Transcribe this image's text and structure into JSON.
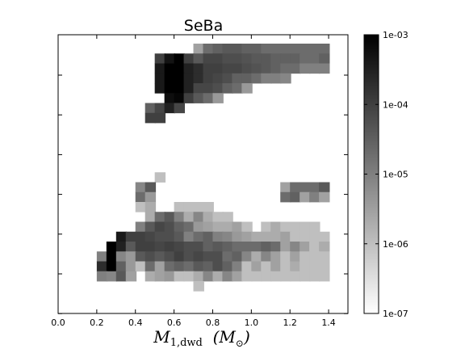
{
  "chart_data": {
    "type": "heatmap",
    "title": "SeBa",
    "xlabel_main": "M",
    "xlabel_sub": "1,dwd",
    "xlabel_unit_main": "M",
    "xlabel_unit_sub": "⊙",
    "xlim": [
      0.0,
      1.5
    ],
    "x_ticks": [
      "0.0",
      "0.2",
      "0.4",
      "0.6",
      "0.8",
      "1.0",
      "1.2",
      "1.4"
    ],
    "y_tick_count": 7,
    "color_scale": "log",
    "colorbar_range": [
      1e-07,
      0.001
    ],
    "colorbar_ticks": [
      "1e-03",
      "1e-04",
      "1e-05",
      "1e-06",
      "1e-07"
    ],
    "colormap": "gray_r",
    "grid": false,
    "cells": [
      {
        "x": 0.7,
        "row": 0,
        "v": 3e-06
      },
      {
        "x": 0.75,
        "row": 0,
        "v": 2e-05
      },
      {
        "x": 0.8,
        "row": 0,
        "v": 3e-05
      },
      {
        "x": 0.85,
        "row": 0,
        "v": 4e-05
      },
      {
        "x": 0.9,
        "row": 0,
        "v": 4e-05
      },
      {
        "x": 0.95,
        "row": 0,
        "v": 3e-05
      },
      {
        "x": 1.0,
        "row": 0,
        "v": 3e-05
      },
      {
        "x": 1.05,
        "row": 0,
        "v": 2e-05
      },
      {
        "x": 1.1,
        "row": 0,
        "v": 2e-05
      },
      {
        "x": 1.15,
        "row": 0,
        "v": 2e-05
      },
      {
        "x": 1.2,
        "row": 0,
        "v": 2e-05
      },
      {
        "x": 1.25,
        "row": 0,
        "v": 2e-05
      },
      {
        "x": 1.3,
        "row": 0,
        "v": 2e-05
      },
      {
        "x": 1.35,
        "row": 0,
        "v": 2e-05
      },
      {
        "x": 0.5,
        "row": 1,
        "v": 0.0001
      },
      {
        "x": 0.55,
        "row": 1,
        "v": 0.0005
      },
      {
        "x": 0.6,
        "row": 1,
        "v": 0.001
      },
      {
        "x": 0.65,
        "row": 1,
        "v": 0.0001
      },
      {
        "x": 0.7,
        "row": 1,
        "v": 4e-05
      },
      {
        "x": 0.75,
        "row": 1,
        "v": 8e-05
      },
      {
        "x": 0.8,
        "row": 1,
        "v": 8e-05
      },
      {
        "x": 0.85,
        "row": 1,
        "v": 6e-05
      },
      {
        "x": 0.9,
        "row": 1,
        "v": 6e-05
      },
      {
        "x": 0.95,
        "row": 1,
        "v": 5e-05
      },
      {
        "x": 1.0,
        "row": 1,
        "v": 4e-05
      },
      {
        "x": 1.05,
        "row": 1,
        "v": 4e-05
      },
      {
        "x": 1.1,
        "row": 1,
        "v": 3e-05
      },
      {
        "x": 1.15,
        "row": 1,
        "v": 3e-05
      },
      {
        "x": 1.2,
        "row": 1,
        "v": 3e-05
      },
      {
        "x": 1.25,
        "row": 1,
        "v": 2e-05
      },
      {
        "x": 1.3,
        "row": 1,
        "v": 2e-05
      },
      {
        "x": 1.35,
        "row": 1,
        "v": 3e-05
      },
      {
        "x": 0.5,
        "row": 2,
        "v": 0.0004
      },
      {
        "x": 0.55,
        "row": 2,
        "v": 0.001
      },
      {
        "x": 0.6,
        "row": 2,
        "v": 0.001
      },
      {
        "x": 0.65,
        "row": 2,
        "v": 0.0003
      },
      {
        "x": 0.7,
        "row": 2,
        "v": 0.0002
      },
      {
        "x": 0.75,
        "row": 2,
        "v": 0.0001
      },
      {
        "x": 0.8,
        "row": 2,
        "v": 0.0001
      },
      {
        "x": 0.85,
        "row": 2,
        "v": 8e-05
      },
      {
        "x": 0.9,
        "row": 2,
        "v": 8e-05
      },
      {
        "x": 0.95,
        "row": 2,
        "v": 6e-05
      },
      {
        "x": 1.0,
        "row": 2,
        "v": 5e-05
      },
      {
        "x": 1.05,
        "row": 2,
        "v": 4e-05
      },
      {
        "x": 1.1,
        "row": 2,
        "v": 3e-05
      },
      {
        "x": 1.15,
        "row": 2,
        "v": 2e-05
      },
      {
        "x": 1.2,
        "row": 2,
        "v": 2e-05
      },
      {
        "x": 1.25,
        "row": 2,
        "v": 1e-05
      },
      {
        "x": 1.3,
        "row": 2,
        "v": 1e-05
      },
      {
        "x": 1.35,
        "row": 2,
        "v": 1e-05
      },
      {
        "x": 0.5,
        "row": 3,
        "v": 0.0004
      },
      {
        "x": 0.55,
        "row": 3,
        "v": 0.001
      },
      {
        "x": 0.6,
        "row": 3,
        "v": 0.001
      },
      {
        "x": 0.65,
        "row": 3,
        "v": 0.0003
      },
      {
        "x": 0.7,
        "row": 3,
        "v": 0.0002
      },
      {
        "x": 0.75,
        "row": 3,
        "v": 0.0001
      },
      {
        "x": 0.8,
        "row": 3,
        "v": 8e-05
      },
      {
        "x": 0.85,
        "row": 3,
        "v": 6e-05
      },
      {
        "x": 0.9,
        "row": 3,
        "v": 3e-05
      },
      {
        "x": 0.95,
        "row": 3,
        "v": 3e-05
      },
      {
        "x": 1.0,
        "row": 3,
        "v": 2e-05
      },
      {
        "x": 1.05,
        "row": 3,
        "v": 1e-05
      },
      {
        "x": 1.1,
        "row": 3,
        "v": 1e-05
      },
      {
        "x": 1.15,
        "row": 3,
        "v": 8e-06
      },
      {
        "x": 0.5,
        "row": 4,
        "v": 0.0004
      },
      {
        "x": 0.55,
        "row": 4,
        "v": 0.001
      },
      {
        "x": 0.6,
        "row": 4,
        "v": 0.001
      },
      {
        "x": 0.65,
        "row": 4,
        "v": 0.0003
      },
      {
        "x": 0.7,
        "row": 4,
        "v": 8e-05
      },
      {
        "x": 0.75,
        "row": 4,
        "v": 8e-05
      },
      {
        "x": 0.8,
        "row": 4,
        "v": 6e-05
      },
      {
        "x": 0.85,
        "row": 4,
        "v": 3e-05
      },
      {
        "x": 0.9,
        "row": 4,
        "v": 2e-05
      },
      {
        "x": 0.95,
        "row": 4,
        "v": 4e-06
      },
      {
        "x": 0.55,
        "row": 5,
        "v": 0.0006
      },
      {
        "x": 0.6,
        "row": 5,
        "v": 0.0008
      },
      {
        "x": 0.65,
        "row": 5,
        "v": 0.0001
      },
      {
        "x": 0.7,
        "row": 5,
        "v": 4e-05
      },
      {
        "x": 0.75,
        "row": 5,
        "v": 2e-05
      },
      {
        "x": 0.8,
        "row": 5,
        "v": 4e-06
      },
      {
        "x": 0.45,
        "row": 6,
        "v": 3e-05
      },
      {
        "x": 0.5,
        "row": 6,
        "v": 8e-05
      },
      {
        "x": 0.55,
        "row": 6,
        "v": 0.0003
      },
      {
        "x": 0.6,
        "row": 6,
        "v": 8e-05
      },
      {
        "x": 0.45,
        "row": 7,
        "v": 0.0001
      },
      {
        "x": 0.5,
        "row": 7,
        "v": 0.0001
      },
      {
        "x": 0.5,
        "row": 13,
        "v": 1e-06
      },
      {
        "x": 0.4,
        "row": 14,
        "v": 8e-06
      },
      {
        "x": 0.45,
        "row": 14,
        "v": 4e-05
      },
      {
        "x": 1.15,
        "row": 14,
        "v": 3e-06
      },
      {
        "x": 1.2,
        "row": 14,
        "v": 2e-05
      },
      {
        "x": 1.25,
        "row": 14,
        "v": 2e-05
      },
      {
        "x": 1.3,
        "row": 14,
        "v": 2e-05
      },
      {
        "x": 1.35,
        "row": 14,
        "v": 4e-05
      },
      {
        "x": 0.4,
        "row": 15,
        "v": 2e-05
      },
      {
        "x": 0.45,
        "row": 15,
        "v": 4e-06
      },
      {
        "x": 1.15,
        "row": 15,
        "v": 2e-05
      },
      {
        "x": 1.2,
        "row": 15,
        "v": 3e-05
      },
      {
        "x": 1.25,
        "row": 15,
        "v": 3e-06
      },
      {
        "x": 1.3,
        "row": 15,
        "v": 1e-05
      },
      {
        "x": 1.35,
        "row": 15,
        "v": 3e-06
      },
      {
        "x": 0.4,
        "row": 16,
        "v": 1e-06
      },
      {
        "x": 0.45,
        "row": 16,
        "v": 2e-06
      },
      {
        "x": 0.6,
        "row": 16,
        "v": 1e-06
      },
      {
        "x": 0.65,
        "row": 16,
        "v": 1e-06
      },
      {
        "x": 0.7,
        "row": 16,
        "v": 1e-06
      },
      {
        "x": 0.75,
        "row": 16,
        "v": 1e-06
      },
      {
        "x": 0.45,
        "row": 17,
        "v": 2e-06
      },
      {
        "x": 0.5,
        "row": 17,
        "v": 2e-05
      },
      {
        "x": 0.55,
        "row": 17,
        "v": 4e-05
      },
      {
        "x": 0.6,
        "row": 17,
        "v": 1e-05
      },
      {
        "x": 0.65,
        "row": 17,
        "v": 2e-06
      },
      {
        "x": 0.7,
        "row": 17,
        "v": 8e-06
      },
      {
        "x": 0.75,
        "row": 17,
        "v": 2e-06
      },
      {
        "x": 0.8,
        "row": 17,
        "v": 1e-06
      },
      {
        "x": 0.85,
        "row": 17,
        "v": 1e-06
      },
      {
        "x": 0.4,
        "row": 18,
        "v": 1e-05
      },
      {
        "x": 0.45,
        "row": 18,
        "v": 4e-05
      },
      {
        "x": 0.5,
        "row": 18,
        "v": 8e-05
      },
      {
        "x": 0.55,
        "row": 18,
        "v": 6e-05
      },
      {
        "x": 0.6,
        "row": 18,
        "v": 3e-05
      },
      {
        "x": 0.65,
        "row": 18,
        "v": 2e-05
      },
      {
        "x": 0.7,
        "row": 18,
        "v": 4e-06
      },
      {
        "x": 0.75,
        "row": 18,
        "v": 3e-06
      },
      {
        "x": 0.8,
        "row": 18,
        "v": 2e-06
      },
      {
        "x": 0.85,
        "row": 18,
        "v": 2e-06
      },
      {
        "x": 0.9,
        "row": 18,
        "v": 3e-06
      },
      {
        "x": 0.95,
        "row": 18,
        "v": 1e-06
      },
      {
        "x": 1.05,
        "row": 18,
        "v": 1e-06
      },
      {
        "x": 1.1,
        "row": 18,
        "v": 2e-06
      },
      {
        "x": 1.15,
        "row": 18,
        "v": 1e-06
      },
      {
        "x": 1.2,
        "row": 18,
        "v": 1e-06
      },
      {
        "x": 1.25,
        "row": 18,
        "v": 1e-06
      },
      {
        "x": 1.3,
        "row": 18,
        "v": 1e-06
      },
      {
        "x": 0.3,
        "row": 19,
        "v": 0.0004
      },
      {
        "x": 0.35,
        "row": 19,
        "v": 0.0001
      },
      {
        "x": 0.4,
        "row": 19,
        "v": 0.0001
      },
      {
        "x": 0.45,
        "row": 19,
        "v": 8e-05
      },
      {
        "x": 0.5,
        "row": 19,
        "v": 6e-05
      },
      {
        "x": 0.55,
        "row": 19,
        "v": 6e-05
      },
      {
        "x": 0.6,
        "row": 19,
        "v": 4e-05
      },
      {
        "x": 0.65,
        "row": 19,
        "v": 1e-05
      },
      {
        "x": 0.7,
        "row": 19,
        "v": 2e-05
      },
      {
        "x": 0.75,
        "row": 19,
        "v": 3e-05
      },
      {
        "x": 0.8,
        "row": 19,
        "v": 1e-05
      },
      {
        "x": 0.85,
        "row": 19,
        "v": 8e-06
      },
      {
        "x": 0.9,
        "row": 19,
        "v": 4e-06
      },
      {
        "x": 0.95,
        "row": 19,
        "v": 3e-06
      },
      {
        "x": 1.0,
        "row": 19,
        "v": 2e-06
      },
      {
        "x": 1.05,
        "row": 19,
        "v": 2e-06
      },
      {
        "x": 1.1,
        "row": 19,
        "v": 2e-06
      },
      {
        "x": 1.15,
        "row": 19,
        "v": 3e-06
      },
      {
        "x": 1.2,
        "row": 19,
        "v": 1e-06
      },
      {
        "x": 1.25,
        "row": 19,
        "v": 1e-06
      },
      {
        "x": 1.3,
        "row": 19,
        "v": 1e-06
      },
      {
        "x": 1.35,
        "row": 19,
        "v": 1e-06
      },
      {
        "x": 0.25,
        "row": 20,
        "v": 0.001
      },
      {
        "x": 0.3,
        "row": 20,
        "v": 0.0003
      },
      {
        "x": 0.35,
        "row": 20,
        "v": 4e-05
      },
      {
        "x": 0.4,
        "row": 20,
        "v": 0.0001
      },
      {
        "x": 0.45,
        "row": 20,
        "v": 0.0001
      },
      {
        "x": 0.5,
        "row": 20,
        "v": 8e-05
      },
      {
        "x": 0.55,
        "row": 20,
        "v": 0.0001
      },
      {
        "x": 0.6,
        "row": 20,
        "v": 8e-05
      },
      {
        "x": 0.65,
        "row": 20,
        "v": 6e-05
      },
      {
        "x": 0.7,
        "row": 20,
        "v": 6e-05
      },
      {
        "x": 0.75,
        "row": 20,
        "v": 3e-05
      },
      {
        "x": 0.8,
        "row": 20,
        "v": 4e-05
      },
      {
        "x": 0.85,
        "row": 20,
        "v": 3e-05
      },
      {
        "x": 0.9,
        "row": 20,
        "v": 2e-05
      },
      {
        "x": 0.95,
        "row": 20,
        "v": 2e-05
      },
      {
        "x": 1.0,
        "row": 20,
        "v": 2e-05
      },
      {
        "x": 1.05,
        "row": 20,
        "v": 3e-05
      },
      {
        "x": 1.1,
        "row": 20,
        "v": 2e-05
      },
      {
        "x": 1.15,
        "row": 20,
        "v": 3e-06
      },
      {
        "x": 1.2,
        "row": 20,
        "v": 8e-06
      },
      {
        "x": 1.25,
        "row": 20,
        "v": 3e-06
      },
      {
        "x": 1.3,
        "row": 20,
        "v": 1e-06
      },
      {
        "x": 1.35,
        "row": 20,
        "v": 2e-06
      },
      {
        "x": 0.2,
        "row": 21,
        "v": 1e-05
      },
      {
        "x": 0.25,
        "row": 21,
        "v": 0.001
      },
      {
        "x": 0.3,
        "row": 21,
        "v": 8e-06
      },
      {
        "x": 0.35,
        "row": 21,
        "v": 4e-06
      },
      {
        "x": 0.4,
        "row": 21,
        "v": 4e-05
      },
      {
        "x": 0.45,
        "row": 21,
        "v": 6e-05
      },
      {
        "x": 0.5,
        "row": 21,
        "v": 4e-05
      },
      {
        "x": 0.55,
        "row": 21,
        "v": 6e-05
      },
      {
        "x": 0.6,
        "row": 21,
        "v": 0.0001
      },
      {
        "x": 0.65,
        "row": 21,
        "v": 6e-05
      },
      {
        "x": 0.7,
        "row": 21,
        "v": 8e-05
      },
      {
        "x": 0.75,
        "row": 21,
        "v": 6e-05
      },
      {
        "x": 0.8,
        "row": 21,
        "v": 6e-05
      },
      {
        "x": 0.85,
        "row": 21,
        "v": 2e-05
      },
      {
        "x": 0.9,
        "row": 21,
        "v": 3e-05
      },
      {
        "x": 0.95,
        "row": 21,
        "v": 8e-06
      },
      {
        "x": 1.0,
        "row": 21,
        "v": 2e-06
      },
      {
        "x": 1.05,
        "row": 21,
        "v": 8e-06
      },
      {
        "x": 1.1,
        "row": 21,
        "v": 3e-06
      },
      {
        "x": 1.15,
        "row": 21,
        "v": 1e-06
      },
      {
        "x": 1.2,
        "row": 21,
        "v": 3e-06
      },
      {
        "x": 1.25,
        "row": 21,
        "v": 1e-06
      },
      {
        "x": 1.3,
        "row": 21,
        "v": 1e-06
      },
      {
        "x": 1.35,
        "row": 21,
        "v": 1e-06
      },
      {
        "x": 0.2,
        "row": 22,
        "v": 0.0002
      },
      {
        "x": 0.25,
        "row": 22,
        "v": 0.001
      },
      {
        "x": 0.3,
        "row": 22,
        "v": 3e-05
      },
      {
        "x": 0.35,
        "row": 22,
        "v": 4e-06
      },
      {
        "x": 0.4,
        "row": 22,
        "v": 1e-06
      },
      {
        "x": 0.45,
        "row": 22,
        "v": 2e-05
      },
      {
        "x": 0.5,
        "row": 22,
        "v": 3e-06
      },
      {
        "x": 0.55,
        "row": 22,
        "v": 2e-05
      },
      {
        "x": 0.6,
        "row": 22,
        "v": 3e-05
      },
      {
        "x": 0.65,
        "row": 22,
        "v": 2e-05
      },
      {
        "x": 0.7,
        "row": 22,
        "v": 4e-05
      },
      {
        "x": 0.75,
        "row": 22,
        "v": 3e-05
      },
      {
        "x": 0.8,
        "row": 22,
        "v": 6e-05
      },
      {
        "x": 0.85,
        "row": 22,
        "v": 3e-05
      },
      {
        "x": 0.9,
        "row": 22,
        "v": 1e-05
      },
      {
        "x": 0.95,
        "row": 22,
        "v": 1e-06
      },
      {
        "x": 1.0,
        "row": 22,
        "v": 3e-06
      },
      {
        "x": 1.05,
        "row": 22,
        "v": 1e-06
      },
      {
        "x": 1.1,
        "row": 22,
        "v": 3e-06
      },
      {
        "x": 1.15,
        "row": 22,
        "v": 1e-06
      },
      {
        "x": 1.2,
        "row": 22,
        "v": 2e-06
      },
      {
        "x": 1.25,
        "row": 22,
        "v": 1e-06
      },
      {
        "x": 1.3,
        "row": 22,
        "v": 1e-06
      },
      {
        "x": 1.35,
        "row": 22,
        "v": 1e-06
      },
      {
        "x": 0.2,
        "row": 23,
        "v": 1e-05
      },
      {
        "x": 0.25,
        "row": 23,
        "v": 8e-06
      },
      {
        "x": 0.3,
        "row": 23,
        "v": 4e-05
      },
      {
        "x": 0.35,
        "row": 23,
        "v": 3e-06
      },
      {
        "x": 0.45,
        "row": 23,
        "v": 2e-06
      },
      {
        "x": 0.5,
        "row": 23,
        "v": 3e-06
      },
      {
        "x": 0.55,
        "row": 23,
        "v": 4e-06
      },
      {
        "x": 0.6,
        "row": 23,
        "v": 1e-06
      },
      {
        "x": 0.65,
        "row": 23,
        "v": 1e-06
      },
      {
        "x": 0.7,
        "row": 23,
        "v": 2e-06
      },
      {
        "x": 0.75,
        "row": 23,
        "v": 8e-06
      },
      {
        "x": 0.8,
        "row": 23,
        "v": 2e-06
      },
      {
        "x": 0.85,
        "row": 23,
        "v": 8e-06
      },
      {
        "x": 0.9,
        "row": 23,
        "v": 3e-06
      },
      {
        "x": 0.95,
        "row": 23,
        "v": 1e-06
      },
      {
        "x": 1.0,
        "row": 23,
        "v": 1e-06
      },
      {
        "x": 1.05,
        "row": 23,
        "v": 1e-06
      },
      {
        "x": 1.1,
        "row": 23,
        "v": 1e-06
      },
      {
        "x": 1.15,
        "row": 23,
        "v": 1e-06
      },
      {
        "x": 1.2,
        "row": 23,
        "v": 1e-06
      },
      {
        "x": 1.25,
        "row": 23,
        "v": 1e-06
      },
      {
        "x": 1.3,
        "row": 23,
        "v": 1e-06
      },
      {
        "x": 1.35,
        "row": 23,
        "v": 1e-06
      },
      {
        "x": 0.7,
        "row": 24,
        "v": 1e-06
      }
    ]
  }
}
